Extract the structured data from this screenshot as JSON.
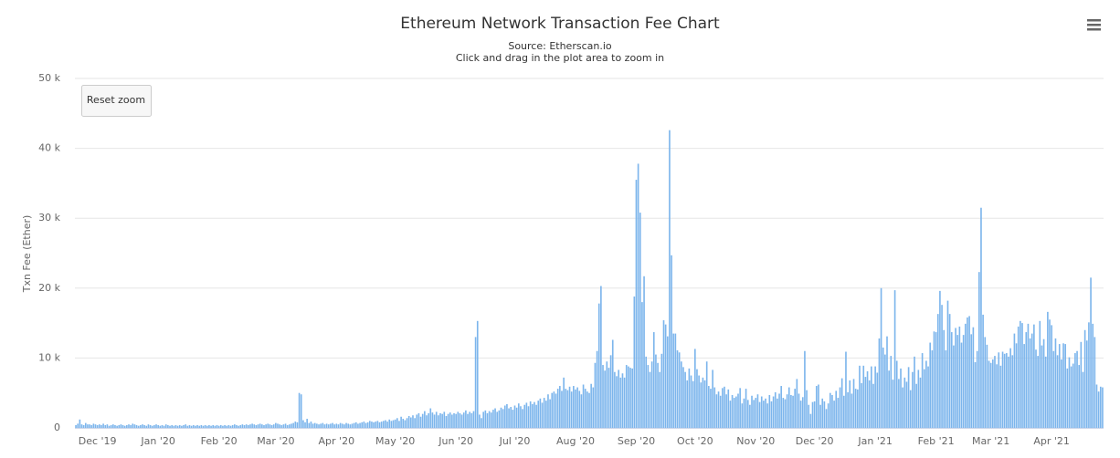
{
  "chart_data": {
    "type": "bar",
    "title": "Ethereum Network Transaction Fee Chart",
    "subtitle": "Source: Etherscan.io",
    "annotation": "Click and drag in the plot area to zoom in",
    "reset_button": "Reset zoom",
    "y_label": "Txn Fee (Ether)",
    "color": "#7cb5ec",
    "grid": true,
    "ylim": [
      0,
      50000
    ],
    "yticks": [
      0,
      {
        "value": 10000,
        "label": "10 k"
      },
      {
        "value": 20000,
        "label": "20 k"
      },
      {
        "value": 30000,
        "label": "30 k"
      },
      {
        "value": 40000,
        "label": "40 k"
      },
      {
        "value": 50000,
        "label": "50 k"
      }
    ],
    "categories": [
      null,
      null,
      null,
      null,
      null,
      null,
      null,
      null,
      null,
      null,
      null,
      "Dec '19",
      null,
      null,
      null,
      null,
      null,
      null,
      null,
      null,
      null,
      null,
      null,
      null,
      null,
      null,
      null,
      null,
      null,
      null,
      null,
      null,
      null,
      null,
      null,
      null,
      null,
      null,
      null,
      null,
      null,
      null,
      "Jan '20",
      null,
      null,
      null,
      null,
      null,
      null,
      null,
      null,
      null,
      null,
      null,
      null,
      null,
      null,
      null,
      null,
      null,
      null,
      null,
      null,
      null,
      null,
      null,
      null,
      null,
      null,
      null,
      null,
      null,
      null,
      "Feb '20",
      null,
      null,
      null,
      null,
      null,
      null,
      null,
      null,
      null,
      null,
      null,
      null,
      null,
      null,
      null,
      null,
      null,
      null,
      null,
      null,
      null,
      null,
      null,
      null,
      null,
      null,
      null,
      null,
      "Mar '20",
      null,
      null,
      null,
      null,
      null,
      null,
      null,
      null,
      null,
      null,
      null,
      null,
      null,
      null,
      null,
      null,
      null,
      null,
      null,
      null,
      null,
      null,
      null,
      null,
      null,
      null,
      null,
      null,
      null,
      null,
      "Apr '20",
      null,
      null,
      null,
      null,
      null,
      null,
      null,
      null,
      null,
      null,
      null,
      null,
      null,
      null,
      null,
      null,
      null,
      null,
      null,
      null,
      null,
      null,
      null,
      null,
      null,
      null,
      null,
      null,
      null,
      "May '20",
      null,
      null,
      null,
      null,
      null,
      null,
      null,
      null,
      null,
      null,
      null,
      null,
      null,
      null,
      null,
      null,
      null,
      null,
      null,
      null,
      null,
      null,
      null,
      null,
      null,
      null,
      null,
      null,
      null,
      null,
      "Jun '20",
      null,
      null,
      null,
      null,
      null,
      null,
      null,
      null,
      null,
      null,
      null,
      null,
      null,
      null,
      null,
      null,
      null,
      null,
      null,
      null,
      null,
      null,
      null,
      null,
      null,
      null,
      null,
      null,
      null,
      "Jul '20",
      null,
      null,
      null,
      null,
      null,
      null,
      null,
      null,
      null,
      null,
      null,
      null,
      null,
      null,
      null,
      null,
      null,
      null,
      null,
      null,
      null,
      null,
      null,
      null,
      null,
      null,
      null,
      null,
      null,
      null,
      "Aug '20",
      null,
      null,
      null,
      null,
      null,
      null,
      null,
      null,
      null,
      null,
      null,
      null,
      null,
      null,
      null,
      null,
      null,
      null,
      null,
      null,
      null,
      null,
      null,
      null,
      null,
      null,
      null,
      null,
      null,
      null,
      "Sep '20",
      null,
      null,
      null,
      null,
      null,
      null,
      null,
      null,
      null,
      null,
      null,
      null,
      null,
      null,
      null,
      null,
      null,
      null,
      null,
      null,
      null,
      null,
      null,
      null,
      null,
      null,
      null,
      null,
      null,
      "Oct '20",
      null,
      null,
      null,
      null,
      null,
      null,
      null,
      null,
      null,
      null,
      null,
      null,
      null,
      null,
      null,
      null,
      null,
      null,
      null,
      null,
      null,
      null,
      null,
      null,
      null,
      null,
      null,
      null,
      null,
      null,
      "Nov '20",
      null,
      null,
      null,
      null,
      null,
      null,
      null,
      null,
      null,
      null,
      null,
      null,
      null,
      null,
      null,
      null,
      null,
      null,
      null,
      null,
      null,
      null,
      null,
      null,
      null,
      null,
      null,
      null,
      null,
      "Dec '20",
      null,
      null,
      null,
      null,
      null,
      null,
      null,
      null,
      null,
      null,
      null,
      null,
      null,
      null,
      null,
      null,
      null,
      null,
      null,
      null,
      null,
      null,
      null,
      null,
      null,
      null,
      null,
      null,
      null,
      null,
      "Jan '21",
      null,
      null,
      null,
      null,
      null,
      null,
      null,
      null,
      null,
      null,
      null,
      null,
      null,
      null,
      null,
      null,
      null,
      null,
      null,
      null,
      null,
      null,
      null,
      null,
      null,
      null,
      null,
      null,
      null,
      null,
      "Feb '21",
      null,
      null,
      null,
      null,
      null,
      null,
      null,
      null,
      null,
      null,
      null,
      null,
      null,
      null,
      null,
      null,
      null,
      null,
      null,
      null,
      null,
      null,
      null,
      null,
      null,
      null,
      null,
      "Mar '21",
      null,
      null,
      null,
      null,
      null,
      null,
      null,
      null,
      null,
      null,
      null,
      null,
      null,
      null,
      null,
      null,
      null,
      null,
      null,
      null,
      null,
      null,
      null,
      null,
      null,
      null,
      null,
      null,
      null,
      null,
      "Apr '21",
      null,
      null,
      null,
      null,
      null,
      null,
      null,
      null,
      null,
      null,
      null,
      null,
      null,
      null,
      null,
      null,
      null,
      null,
      null,
      null,
      null,
      null,
      null,
      null,
      null,
      null
    ],
    "values": [
      400,
      600,
      1200,
      500,
      400,
      700,
      500,
      500,
      400,
      600,
      500,
      400,
      500,
      400,
      600,
      400,
      500,
      300,
      400,
      500,
      400,
      300,
      400,
      500,
      400,
      300,
      400,
      500,
      400,
      600,
      500,
      400,
      300,
      400,
      500,
      400,
      300,
      500,
      400,
      300,
      400,
      500,
      400,
      300,
      400,
      300,
      500,
      400,
      300,
      400,
      300,
      400,
      300,
      400,
      300,
      400,
      500,
      300,
      400,
      300,
      400,
      300,
      400,
      300,
      400,
      300,
      400,
      300,
      400,
      300,
      400,
      300,
      400,
      300,
      400,
      300,
      400,
      300,
      400,
      300,
      400,
      500,
      400,
      300,
      400,
      500,
      400,
      500,
      400,
      500,
      600,
      500,
      400,
      500,
      600,
      500,
      400,
      500,
      600,
      500,
      400,
      500,
      700,
      600,
      500,
      400,
      500,
      600,
      400,
      500,
      600,
      700,
      900,
      800,
      5000,
      4800,
      1100,
      800,
      1300,
      700,
      900,
      600,
      700,
      600,
      500,
      600,
      700,
      500,
      600,
      500,
      600,
      700,
      500,
      600,
      500,
      700,
      600,
      500,
      700,
      600,
      500,
      600,
      700,
      800,
      600,
      700,
      800,
      900,
      700,
      800,
      1000,
      900,
      800,
      900,
      1000,
      800,
      900,
      1000,
      1100,
      900,
      1200,
      1000,
      1100,
      1200,
      1400,
      1000,
      1600,
      1300,
      1100,
      1400,
      1700,
      1500,
      1800,
      1400,
      1900,
      2100,
      1600,
      2000,
      2400,
      1800,
      2100,
      2800,
      2200,
      1900,
      2300,
      1800,
      2100,
      2000,
      2300,
      1700,
      2000,
      2200,
      1900,
      2100,
      2000,
      2300,
      2100,
      1900,
      2200,
      2500,
      2000,
      2300,
      2100,
      2400,
      13000,
      15300,
      1900,
      1400,
      2300,
      2500,
      2100,
      2400,
      2200,
      2600,
      2800,
      2300,
      2500,
      2900,
      2700,
      3200,
      3400,
      2800,
      3000,
      2600,
      3200,
      2900,
      3500,
      3100,
      2700,
      3300,
      3600,
      3100,
      3800,
      3400,
      3700,
      3300,
      3900,
      4200,
      3600,
      4300,
      3900,
      4800,
      4100,
      5000,
      5200,
      4900,
      5600,
      6000,
      5300,
      7200,
      5600,
      5400,
      5900,
      5200,
      6000,
      5500,
      5800,
      5300,
      4800,
      6200,
      5600,
      5200,
      5000,
      6300,
      5800,
      9300,
      11000,
      17800,
      20300,
      9000,
      8200,
      9500,
      8600,
      10400,
      12600,
      8000,
      7400,
      8300,
      7200,
      7800,
      7200,
      9000,
      8800,
      8600,
      8500,
      18800,
      35500,
      37800,
      30800,
      18000,
      21700,
      10200,
      9000,
      8000,
      9500,
      13700,
      10500,
      9300,
      8000,
      10600,
      15400,
      14800,
      13100,
      42600,
      24700,
      13500,
      13500,
      11100,
      10800,
      9500,
      8700,
      8000,
      6800,
      8500,
      7500,
      6700,
      11300,
      8400,
      7500,
      6500,
      7200,
      6800,
      9500,
      6000,
      5600,
      8300,
      5800,
      4800,
      5200,
      4600,
      5700,
      5900,
      4800,
      5500,
      3900,
      4700,
      4300,
      4500,
      4900,
      5700,
      3500,
      4200,
      5600,
      4000,
      3300,
      4600,
      4000,
      4300,
      4800,
      3700,
      4500,
      3900,
      4200,
      3500,
      4700,
      3800,
      4500,
      5100,
      4200,
      4900,
      6000,
      4300,
      4100,
      4800,
      5800,
      4700,
      4600,
      5600,
      7000,
      4900,
      3900,
      4400,
      11000,
      5400,
      3300,
      2000,
      3700,
      3800,
      6000,
      6200,
      3300,
      4200,
      3800,
      2700,
      3500,
      5000,
      4700,
      3900,
      5300,
      4300,
      5800,
      7100,
      4600,
      10900,
      5100,
      6800,
      4900,
      7000,
      5600,
      5500,
      8900,
      6400,
      8900,
      7300,
      8100,
      6800,
      8800,
      6300,
      8800,
      7900,
      12800,
      20000,
      11500,
      10500,
      13100,
      8200,
      10300,
      6900,
      19700,
      9600,
      7000,
      8500,
      5800,
      7200,
      6600,
      8700,
      5400,
      8000,
      10200,
      6300,
      8300,
      7200,
      10700,
      8400,
      9600,
      8800,
      12200,
      11100,
      13800,
      13700,
      16300,
      19600,
      17600,
      14000,
      11100,
      18200,
      16300,
      13700,
      11800,
      14300,
      13300,
      14500,
      12200,
      13300,
      14900,
      15800,
      16000,
      13400,
      14400,
      9400,
      11000,
      22300,
      31500,
      16200,
      13000,
      11900,
      9600,
      9300,
      9800,
      10300,
      9100,
      10800,
      8900,
      10900,
      10600,
      10700,
      10200,
      11400,
      10400,
      13500,
      12100,
      14500,
      15300,
      15000,
      12000,
      13700,
      14900,
      12800,
      13500,
      14800,
      11200,
      10300,
      15300,
      11800,
      12700,
      10200,
      16600,
      15500,
      14700,
      11000,
      12800,
      10400,
      12000,
      9800,
      12100,
      12000,
      8500,
      10100,
      8800,
      9200,
      10700,
      11000,
      9000,
      12300,
      8000,
      14000,
      12500,
      15100,
      21500,
      14900,
      13000,
      6200,
      5200,
      5900,
      5800
    ]
  }
}
